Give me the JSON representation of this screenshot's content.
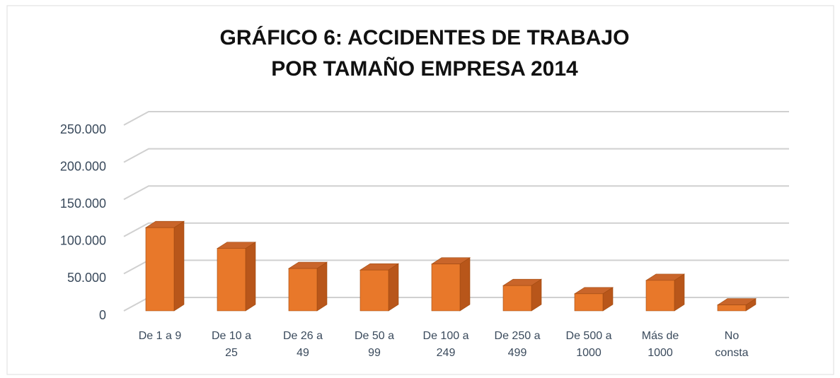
{
  "chart_data": {
    "type": "bar3d",
    "title": "GRÁFICO 6: ACCIDENTES DE TRABAJO POR TAMAÑO EMPRESA 2014",
    "categories": [
      "De 1 a 9",
      "De 10 a 25",
      "De 26 a 49",
      "De 50 a 99",
      "De 100 a 249",
      "De 250 a 499",
      "De 500 a 1000",
      "Más de 1000",
      "No consta"
    ],
    "values": [
      112000,
      84000,
      57000,
      55000,
      63000,
      34000,
      23000,
      41000,
      8000
    ],
    "color": "#e8782a",
    "ylim": [
      0,
      250000
    ],
    "yticks": [
      0,
      {
        "value": 50000,
        "label": "50.000"
      },
      {
        "value": 100000,
        "label": "100.000"
      },
      {
        "value": 150000,
        "label": "150.000"
      },
      {
        "value": 200000,
        "label": "200.000"
      },
      {
        "value": 250000,
        "label": "250.000"
      }
    ],
    "grid": true
  }
}
